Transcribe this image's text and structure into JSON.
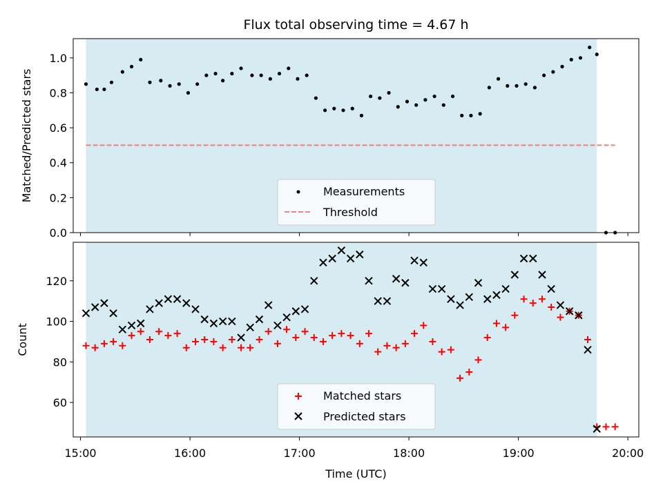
{
  "chart_data": [
    {
      "type": "scatter",
      "title": "Flux total observing time = 4.67 h",
      "ylabel": "Matched/Predicted stars",
      "xlabel": "",
      "xlim": [
        "14:56",
        "20:06"
      ],
      "ylim": [
        0,
        1.11
      ],
      "y_ticks": [
        0.0,
        0.2,
        0.4,
        0.6,
        0.8,
        1.0
      ],
      "y_tick_labels": [
        "0.0",
        "0.2",
        "0.4",
        "0.6",
        "0.8",
        "1.0"
      ],
      "shaded_span": [
        "15:03",
        "19:43"
      ],
      "shaded_color": "#add8e6",
      "legend_position": "lower center",
      "series": [
        {
          "name": "Measurements",
          "marker": "dot",
          "color": "#000000",
          "x": [
            "15:03",
            "15:09",
            "15:13",
            "15:17",
            "15:23",
            "15:28",
            "15:33",
            "15:38",
            "15:44",
            "15:49",
            "15:54",
            "15:59",
            "16:04",
            "16:09",
            "16:14",
            "16:18",
            "16:23",
            "16:28",
            "16:34",
            "16:39",
            "16:44",
            "16:49",
            "16:54",
            "16:59",
            "17:04",
            "17:09",
            "17:14",
            "17:19",
            "17:24",
            "17:29",
            "17:34",
            "17:39",
            "17:44",
            "17:49",
            "17:54",
            "17:59",
            "18:04",
            "18:09",
            "18:14",
            "18:19",
            "18:24",
            "18:29",
            "18:34",
            "18:39",
            "18:44",
            "18:49",
            "18:54",
            "18:59",
            "19:04",
            "19:09",
            "19:14",
            "19:19",
            "19:24",
            "19:29",
            "19:34",
            "19:39",
            "19:43",
            "19:48",
            "19:53"
          ],
          "y": [
            0.85,
            0.82,
            0.82,
            0.86,
            0.92,
            0.95,
            0.99,
            0.86,
            0.87,
            0.84,
            0.85,
            0.8,
            0.85,
            0.9,
            0.91,
            0.87,
            0.91,
            0.94,
            0.9,
            0.9,
            0.88,
            0.91,
            0.94,
            0.88,
            0.9,
            0.77,
            0.7,
            0.71,
            0.7,
            0.71,
            0.67,
            0.78,
            0.77,
            0.8,
            0.72,
            0.75,
            0.73,
            0.76,
            0.78,
            0.73,
            0.78,
            0.67,
            0.67,
            0.68,
            0.83,
            0.88,
            0.84,
            0.84,
            0.85,
            0.83,
            0.9,
            0.92,
            0.95,
            0.99,
            1.0,
            1.06,
            1.02,
            0.0,
            0.0
          ]
        },
        {
          "name": "Threshold",
          "line": "dashed",
          "color": "#f08080",
          "x": [
            "15:03",
            "19:53"
          ],
          "y": [
            0.5,
            0.5
          ]
        }
      ]
    },
    {
      "type": "scatter",
      "title": "",
      "xlabel": "Time (UTC)",
      "ylabel": "Count",
      "xlim": [
        "14:56",
        "20:06"
      ],
      "ylim": [
        43,
        139
      ],
      "x_ticks": [
        "15:00",
        "16:00",
        "17:00",
        "18:00",
        "19:00",
        "20:00"
      ],
      "x_tick_labels": [
        "15:00",
        "16:00",
        "17:00",
        "18:00",
        "19:00",
        "20:00"
      ],
      "y_ticks": [
        60,
        80,
        100,
        120
      ],
      "y_tick_labels": [
        "60",
        "80",
        "100",
        "120"
      ],
      "shaded_span": [
        "15:03",
        "19:43"
      ],
      "shaded_color": "#add8e6",
      "legend_position": "lower center",
      "series": [
        {
          "name": "Matched stars",
          "marker": "plus",
          "color": "#ff0000",
          "x": [
            "15:03",
            "15:08",
            "15:13",
            "15:18",
            "15:23",
            "15:28",
            "15:33",
            "15:38",
            "15:43",
            "15:48",
            "15:53",
            "15:58",
            "16:03",
            "16:08",
            "16:13",
            "16:18",
            "16:23",
            "16:28",
            "16:33",
            "16:38",
            "16:43",
            "16:48",
            "16:53",
            "16:58",
            "17:03",
            "17:08",
            "17:13",
            "17:18",
            "17:23",
            "17:28",
            "17:33",
            "17:38",
            "17:43",
            "17:48",
            "17:53",
            "17:58",
            "18:03",
            "18:08",
            "18:13",
            "18:18",
            "18:23",
            "18:28",
            "18:33",
            "18:38",
            "18:43",
            "18:48",
            "18:53",
            "18:58",
            "19:03",
            "19:08",
            "19:13",
            "19:18",
            "19:23",
            "19:28",
            "19:33",
            "19:38",
            "19:43",
            "19:48",
            "19:53"
          ],
          "y": [
            88,
            87,
            89,
            90,
            88,
            93,
            95,
            91,
            95,
            93,
            94,
            87,
            90,
            91,
            90,
            87,
            91,
            87,
            87,
            91,
            95,
            89,
            96,
            92,
            95,
            92,
            90,
            93,
            94,
            93,
            89,
            94,
            85,
            88,
            87,
            89,
            94,
            98,
            90,
            85,
            86,
            72,
            75,
            81,
            92,
            99,
            97,
            103,
            111,
            109,
            111,
            107,
            102,
            105,
            103,
            91,
            48,
            48,
            48
          ]
        },
        {
          "name": "Predicted stars",
          "marker": "x",
          "color": "#000000",
          "x": [
            "15:03",
            "15:08",
            "15:13",
            "15:18",
            "15:23",
            "15:28",
            "15:33",
            "15:38",
            "15:43",
            "15:48",
            "15:53",
            "15:58",
            "16:03",
            "16:08",
            "16:13",
            "16:18",
            "16:23",
            "16:28",
            "16:33",
            "16:38",
            "16:43",
            "16:48",
            "16:53",
            "16:58",
            "17:03",
            "17:08",
            "17:13",
            "17:18",
            "17:23",
            "17:28",
            "17:33",
            "17:38",
            "17:43",
            "17:48",
            "17:53",
            "17:58",
            "18:03",
            "18:08",
            "18:13",
            "18:18",
            "18:23",
            "18:28",
            "18:33",
            "18:38",
            "18:43",
            "18:48",
            "18:53",
            "18:58",
            "19:03",
            "19:08",
            "19:13",
            "19:18",
            "19:23",
            "19:28",
            "19:33",
            "19:38",
            "19:43"
          ],
          "y": [
            104,
            107,
            109,
            104,
            96,
            98,
            99,
            106,
            109,
            111,
            111,
            109,
            106,
            101,
            99,
            100,
            100,
            92,
            97,
            101,
            108,
            98,
            102,
            105,
            106,
            120,
            129,
            131,
            135,
            131,
            133,
            120,
            110,
            110,
            121,
            119,
            130,
            129,
            116,
            116,
            111,
            108,
            112,
            119,
            111,
            113,
            116,
            123,
            131,
            131,
            123,
            116,
            108,
            105,
            103,
            86,
            47
          ]
        }
      ]
    }
  ]
}
